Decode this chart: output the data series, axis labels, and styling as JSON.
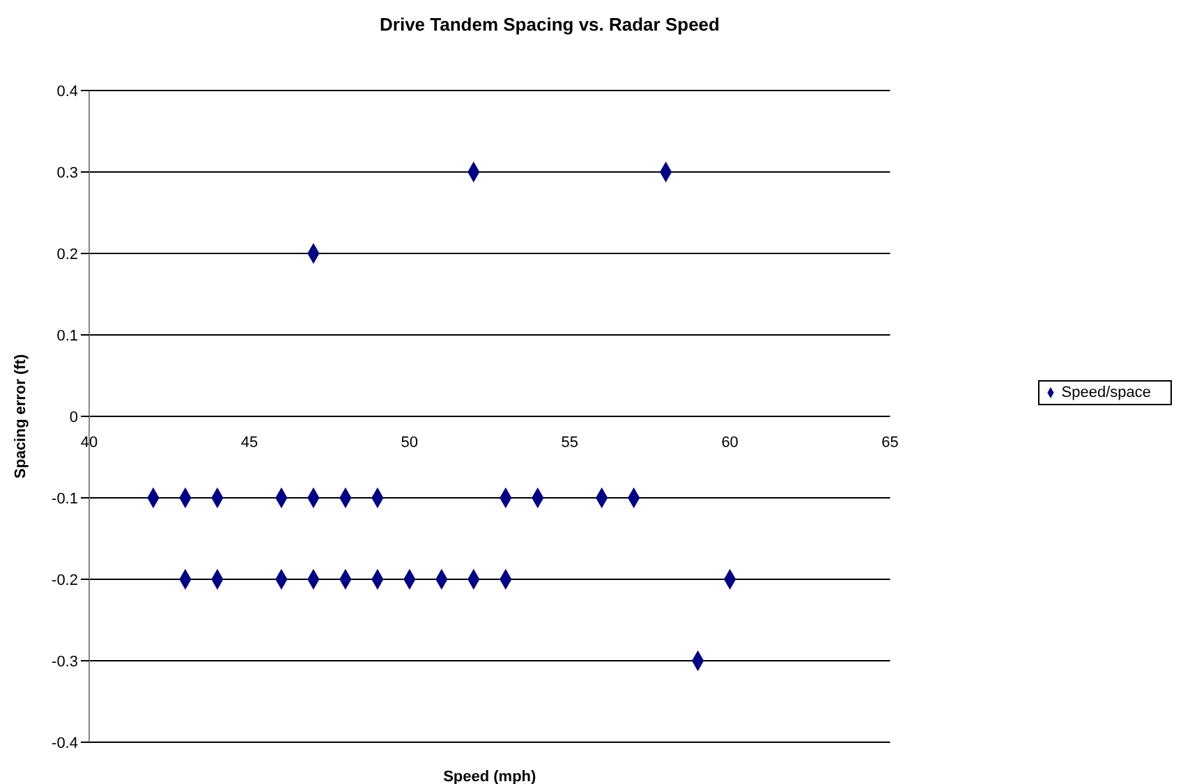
{
  "chart_data": {
    "type": "scatter",
    "title": "Drive Tandem Spacing vs. Radar Speed",
    "xlabel": "Speed (mph)",
    "ylabel": "Spacing error (ft)",
    "series": [
      {
        "name": "Speed/space",
        "color": "#000080",
        "x": [
          42,
          43,
          44,
          46,
          47,
          48,
          49,
          53,
          54,
          56,
          57,
          43,
          44,
          46,
          47,
          48,
          49,
          50,
          51,
          52,
          53,
          60,
          59,
          47,
          52,
          58
        ],
        "values": [
          -0.1,
          -0.1,
          -0.1,
          -0.1,
          -0.1,
          -0.1,
          -0.1,
          -0.1,
          -0.1,
          -0.1,
          -0.1,
          -0.2,
          -0.2,
          -0.2,
          -0.2,
          -0.2,
          -0.2,
          -0.2,
          -0.2,
          -0.2,
          -0.2,
          -0.2,
          -0.3,
          0.2,
          0.3,
          0.3
        ]
      }
    ],
    "xlim": [
      40,
      65
    ],
    "xticks": [
      40,
      45,
      50,
      55,
      60,
      65
    ],
    "ylim": [
      -0.4,
      0.4
    ],
    "yticks": [
      -0.4,
      -0.3,
      -0.2,
      -0.1,
      0,
      0.1,
      0.2,
      0.3,
      0.4
    ],
    "grid": "y",
    "legend": "right",
    "marker": "diamond"
  }
}
